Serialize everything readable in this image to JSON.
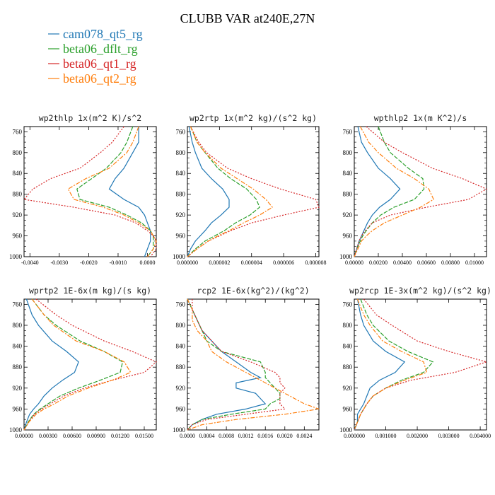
{
  "title": "CLUBB VAR at240E,27N",
  "legend": [
    {
      "name": "cam078_qt5_rg",
      "color": "#1f77b4"
    },
    {
      "name": "beta06_dflt_rg",
      "color": "#2ca02c"
    },
    {
      "name": "beta06_qt1_rg",
      "color": "#d62728"
    },
    {
      "name": "beta06_qt2_rg",
      "color": "#ff7f0e"
    }
  ],
  "chart_data": [
    {
      "type": "line",
      "title": "wp2thlp  1x(m^2 K)/s^2",
      "xlim": [
        -0.0042,
        0.0003
      ],
      "ylim": [
        1000,
        750
      ],
      "xticks": [
        -0.004,
        -0.003,
        -0.002,
        -0.001,
        0.0
      ],
      "xticklabels": [
        "-0.0040",
        "-0.0030",
        "-0.0020",
        "-0.0010",
        "0.0000"
      ],
      "yticks": [
        760,
        800,
        840,
        880,
        920,
        960,
        1000
      ],
      "y": [
        750,
        780,
        800,
        830,
        850,
        870,
        890,
        905,
        920,
        935,
        950,
        960,
        970,
        985,
        1000
      ],
      "series": [
        {
          "name": "cam078_qt5_rg",
          "values": [
            -0.0003,
            -0.0003,
            -0.0005,
            -0.0008,
            -0.0011,
            -0.0013,
            -0.0008,
            -0.0003,
            -0.0001,
            0.0,
            0.0001,
            0.0001,
            0.0001,
            0.0,
            -0.0001
          ]
        },
        {
          "name": "beta06_dflt_rg",
          "values": [
            -0.0005,
            -0.0007,
            -0.0009,
            -0.0014,
            -0.0019,
            -0.0024,
            -0.0023,
            -0.0013,
            -0.0007,
            -0.0002,
            0.0001,
            0.0002,
            0.0002,
            0.0002,
            0.0
          ]
        },
        {
          "name": "beta06_qt1_rg",
          "values": [
            -0.0008,
            -0.0012,
            -0.0016,
            -0.0023,
            -0.0033,
            -0.0039,
            -0.0042,
            -0.0025,
            -0.0011,
            -0.0004,
            0.0,
            0.0002,
            0.0003,
            0.0003,
            0.0001
          ]
        },
        {
          "name": "beta06_qt2_rg",
          "values": [
            -0.0003,
            -0.0005,
            -0.0007,
            -0.0013,
            -0.0021,
            -0.0027,
            -0.0025,
            -0.0015,
            -0.0008,
            -0.0003,
            0.0001,
            0.0002,
            0.0003,
            0.0002,
            0.0
          ]
        }
      ]
    },
    {
      "type": "line",
      "title": "wp2rtp  1x(m^2 kg)/(s^2 kg)",
      "xlim": [
        0,
        8.2e-06
      ],
      "ylim": [
        1000,
        750
      ],
      "xticks": [
        0,
        2e-06,
        4e-06,
        6e-06,
        8e-06
      ],
      "xticklabels": [
        "0.000000",
        "0.000002",
        "0.000004",
        "0.000006",
        "0.000008"
      ],
      "yticks": [
        760,
        800,
        840,
        880,
        920,
        960,
        1000
      ],
      "y": [
        750,
        780,
        800,
        830,
        850,
        870,
        890,
        905,
        920,
        935,
        950,
        960,
        970,
        985,
        1000
      ],
      "series": [
        {
          "name": "cam078_qt5_rg",
          "values": [
            1e-07,
            3e-07,
            5e-07,
            9e-07,
            1.5e-06,
            2.2e-06,
            2.6e-06,
            2.6e-06,
            2.1e-06,
            1.5e-06,
            1.1e-06,
            8e-07,
            5e-07,
            2e-07,
            0.0
          ]
        },
        {
          "name": "beta06_dflt_rg",
          "values": [
            2e-07,
            6e-07,
            1.1e-06,
            1.9e-06,
            2.7e-06,
            3.7e-06,
            4.3e-06,
            4.5e-06,
            3.9e-06,
            3e-06,
            2.3e-06,
            1.7e-06,
            1.1e-06,
            5e-07,
            0.0
          ]
        },
        {
          "name": "beta06_qt1_rg",
          "values": [
            2e-07,
            7e-07,
            1.2e-06,
            2.5e-06,
            4e-06,
            5.8e-06,
            8e-06,
            8.2e-06,
            6e-06,
            4e-06,
            2.7e-06,
            2e-06,
            1.3e-06,
            6e-07,
            0.0
          ]
        },
        {
          "name": "beta06_qt2_rg",
          "values": [
            2e-07,
            6e-07,
            1.1e-06,
            2.1e-06,
            3.1e-06,
            4.1e-06,
            4.9e-06,
            5.3e-06,
            4.5e-06,
            3.5e-06,
            2.6e-06,
            1.9e-06,
            1.3e-06,
            6e-07,
            0.0
          ]
        }
      ]
    },
    {
      "type": "line",
      "title": "wpthlp2  1x(m K^2)/s",
      "xlim": [
        0,
        0.011
      ],
      "ylim": [
        1000,
        750
      ],
      "xticks": [
        0,
        0.002,
        0.004,
        0.006,
        0.008,
        0.01
      ],
      "xticklabels": [
        "0.00000",
        "0.00200",
        "0.00400",
        "0.00600",
        "0.00800",
        "0.01000"
      ],
      "yticks": [
        760,
        800,
        840,
        880,
        920,
        960,
        1000
      ],
      "y": [
        750,
        780,
        800,
        830,
        850,
        870,
        890,
        905,
        920,
        935,
        950,
        960,
        970,
        985,
        1000
      ],
      "series": [
        {
          "name": "cam078_qt5_rg",
          "values": [
            0.0003,
            0.0006,
            0.0011,
            0.002,
            0.003,
            0.0038,
            0.003,
            0.0021,
            0.0015,
            0.0011,
            0.0008,
            0.0006,
            0.0004,
            0.0002,
            0.0
          ]
        },
        {
          "name": "beta06_dflt_rg",
          "values": [
            0.002,
            0.0025,
            0.003,
            0.0045,
            0.0057,
            0.0058,
            0.005,
            0.0033,
            0.0022,
            0.0015,
            0.001,
            0.0007,
            0.0005,
            0.0002,
            0.0
          ]
        },
        {
          "name": "beta06_qt1_rg",
          "values": [
            0.001,
            0.0025,
            0.004,
            0.0065,
            0.009,
            0.011,
            0.0095,
            0.006,
            0.003,
            0.0015,
            0.0009,
            0.0006,
            0.0004,
            0.0002,
            0.0
          ]
        },
        {
          "name": "beta06_qt2_rg",
          "values": [
            0.0005,
            0.0012,
            0.002,
            0.0035,
            0.005,
            0.0062,
            0.0066,
            0.0055,
            0.004,
            0.0025,
            0.0015,
            0.001,
            0.0006,
            0.0003,
            0.0
          ]
        }
      ]
    },
    {
      "type": "line",
      "title": "wprtp2  1E-6x(m kg)/(s kg)",
      "xlim": [
        0,
        0.0165
      ],
      "ylim": [
        1000,
        750
      ],
      "xticks": [
        0,
        0.003,
        0.006,
        0.009,
        0.012,
        0.015
      ],
      "xticklabels": [
        "0.00000",
        "0.00300",
        "0.00600",
        "0.00900",
        "0.01200",
        "0.01500"
      ],
      "yticks": [
        760,
        800,
        840,
        880,
        920,
        960,
        1000
      ],
      "y": [
        750,
        780,
        800,
        830,
        850,
        870,
        890,
        905,
        920,
        935,
        950,
        960,
        970,
        985,
        1000
      ],
      "series": [
        {
          "name": "cam078_qt5_rg",
          "values": [
            0.0003,
            0.001,
            0.0018,
            0.0035,
            0.0053,
            0.0068,
            0.0063,
            0.0048,
            0.0035,
            0.0025,
            0.0018,
            0.0012,
            0.0007,
            0.0003,
            0.0
          ]
        },
        {
          "name": "beta06_dflt_rg",
          "values": [
            0.001,
            0.0025,
            0.004,
            0.007,
            0.01,
            0.0123,
            0.012,
            0.0095,
            0.0068,
            0.0045,
            0.003,
            0.002,
            0.0012,
            0.0005,
            0.0
          ]
        },
        {
          "name": "beta06_qt1_rg",
          "values": [
            0.0015,
            0.004,
            0.006,
            0.01,
            0.0135,
            0.0165,
            0.015,
            0.011,
            0.0075,
            0.005,
            0.0033,
            0.0022,
            0.0013,
            0.0006,
            0.0
          ]
        },
        {
          "name": "beta06_qt2_rg",
          "values": [
            0.001,
            0.0025,
            0.0037,
            0.0065,
            0.01,
            0.0125,
            0.0133,
            0.011,
            0.008,
            0.0055,
            0.0038,
            0.0025,
            0.0015,
            0.0006,
            0.0
          ]
        }
      ]
    },
    {
      "type": "line",
      "title": "rcp2  1E-6x(kg^2)/(kg^2)",
      "xlim": [
        0,
        0.0027
      ],
      "ylim": [
        1000,
        750
      ],
      "xticks": [
        0,
        0.0004,
        0.0008,
        0.0012,
        0.0016,
        0.002,
        0.0024
      ],
      "xticklabels": [
        "0.0000",
        "0.0004",
        "0.0008",
        "0.0012",
        "0.0016",
        "0.0020",
        "0.0024"
      ],
      "yticks": [
        760,
        800,
        840,
        880,
        920,
        960,
        1000
      ],
      "y": [
        750,
        770,
        790,
        810,
        830,
        850,
        870,
        890,
        900,
        910,
        920,
        930,
        940,
        950,
        960,
        970,
        980,
        990,
        1000
      ],
      "series": [
        {
          "name": "cam078_qt5_rg",
          "values": [
            0.0,
            0.0001,
            0.0002,
            0.0003,
            0.0005,
            0.0007,
            0.001,
            0.0013,
            0.0015,
            0.001,
            0.001,
            0.0014,
            0.0015,
            0.0016,
            0.0012,
            0.0006,
            0.0003,
            0.0001,
            0.0
          ]
        },
        {
          "name": "beta06_dflt_rg",
          "values": [
            0.0,
            0.0001,
            0.0002,
            0.0003,
            0.0004,
            0.0007,
            0.0015,
            0.0016,
            0.0016,
            0.0017,
            0.0018,
            0.0019,
            0.0019,
            0.0017,
            0.0016,
            0.0009,
            0.0003,
            0.0001,
            0.0
          ]
        },
        {
          "name": "beta06_qt1_rg",
          "values": [
            0.0001,
            0.0001,
            0.0002,
            0.0003,
            0.0005,
            0.0007,
            0.0013,
            0.0018,
            0.0019,
            0.0019,
            0.002,
            0.0019,
            0.0019,
            0.0019,
            0.002,
            0.0012,
            0.0004,
            0.0001,
            0.0
          ]
        },
        {
          "name": "beta06_qt2_rg",
          "values": [
            0.0,
            0.0001,
            0.0001,
            0.0002,
            0.0004,
            0.0005,
            0.0008,
            0.0012,
            0.0014,
            0.0016,
            0.0018,
            0.002,
            0.0022,
            0.0024,
            0.0027,
            0.002,
            0.001,
            0.0003,
            0.0
          ]
        }
      ]
    },
    {
      "type": "line",
      "title": "wp2rcp  1E-3x(m^2 kg)/(s^2 kg)",
      "xlim": [
        0,
        0.0042
      ],
      "ylim": [
        1000,
        750
      ],
      "xticks": [
        0,
        0.001,
        0.002,
        0.003,
        0.004
      ],
      "xticklabels": [
        "0.000000",
        "0.001000",
        "0.002000",
        "0.003000",
        "0.004000"
      ],
      "yticks": [
        760,
        800,
        840,
        880,
        920,
        960,
        1000
      ],
      "y": [
        750,
        780,
        800,
        830,
        850,
        870,
        890,
        905,
        920,
        935,
        950,
        960,
        970,
        985,
        1000
      ],
      "series": [
        {
          "name": "cam078_qt5_rg",
          "values": [
            0.0001,
            0.0002,
            0.0003,
            0.0006,
            0.001,
            0.0016,
            0.0013,
            0.0008,
            0.0005,
            0.0004,
            0.0003,
            0.0002,
            0.0001,
            0.0001,
            0.0
          ]
        },
        {
          "name": "beta06_dflt_rg",
          "values": [
            0.0002,
            0.0004,
            0.0006,
            0.0011,
            0.0017,
            0.0025,
            0.0022,
            0.0015,
            0.001,
            0.0006,
            0.0004,
            0.0003,
            0.0002,
            0.0001,
            0.0
          ]
        },
        {
          "name": "beta06_qt1_rg",
          "values": [
            0.0003,
            0.0007,
            0.0012,
            0.002,
            0.003,
            0.0042,
            0.0032,
            0.0018,
            0.001,
            0.0006,
            0.0004,
            0.0003,
            0.0002,
            0.0001,
            0.0
          ]
        },
        {
          "name": "beta06_qt2_rg",
          "values": [
            0.0001,
            0.0003,
            0.0005,
            0.0009,
            0.0015,
            0.0022,
            0.0023,
            0.0016,
            0.001,
            0.0006,
            0.0004,
            0.0003,
            0.0002,
            0.0001,
            0.0
          ]
        }
      ]
    }
  ]
}
